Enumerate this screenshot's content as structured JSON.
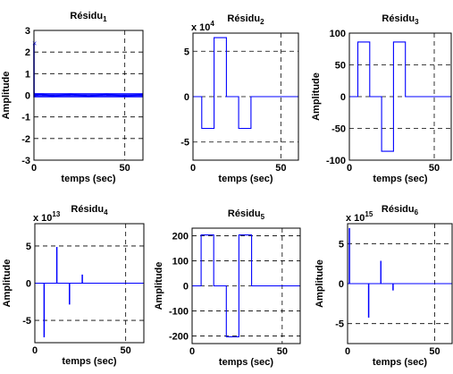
{
  "chart_data": [
    {
      "type": "line",
      "title": "Résidu",
      "title_sub": "1",
      "xlabel": "temps (sec)",
      "ylabel": "Amplitude",
      "xlim": [
        0,
        60
      ],
      "ylim": [
        -3,
        3
      ],
      "xticks": [
        "0",
        "50"
      ],
      "yticks": [
        "-3",
        "-2",
        "-1",
        "0",
        "1",
        "2",
        "3"
      ],
      "ytick_values": [
        -3,
        -2,
        -1,
        0,
        1,
        2,
        3
      ],
      "exponent": null,
      "grid": "dashed",
      "x": [
        0,
        0.05,
        0.1,
        0.2,
        0.4,
        0.6,
        1,
        5,
        10,
        20,
        30,
        40,
        50,
        60
      ],
      "y": [
        2.4,
        -0.1,
        0.12,
        -0.08,
        0.08,
        -0.06,
        0.05,
        0.05,
        -0.05,
        0.05,
        -0.05,
        0.05,
        -0.05,
        0.04
      ]
    },
    {
      "type": "line",
      "title": "Résidu",
      "title_sub": "2",
      "xlabel": "temps (sec)",
      "ylabel": "",
      "xlim": [
        0,
        60
      ],
      "ylim": [
        -7,
        7
      ],
      "xticks": [
        "0",
        "50"
      ],
      "yticks": [
        "-5",
        "0",
        "5"
      ],
      "ytick_values": [
        -5,
        0,
        5
      ],
      "exponent": {
        "base": "x 10",
        "power": "4"
      },
      "grid": "dashed",
      "x": [
        0,
        5,
        5,
        12,
        12,
        19,
        19,
        26,
        26,
        33,
        33,
        60
      ],
      "y": [
        0,
        0,
        -3.5,
        -3.5,
        6.5,
        6.5,
        0,
        0,
        -3.5,
        -3.5,
        0,
        0
      ]
    },
    {
      "type": "line",
      "title": "Résidu",
      "title_sub": "3",
      "xlabel": "temps (sec)",
      "ylabel": "Amplitude",
      "xlim": [
        0,
        60
      ],
      "ylim": [
        -100,
        100
      ],
      "xticks": [
        "0",
        "50"
      ],
      "yticks": [
        "-100",
        "-50",
        "0",
        "50",
        "100"
      ],
      "ytick_values": [
        -100,
        -50,
        0,
        50,
        100
      ],
      "exponent": null,
      "grid": "dashed",
      "x": [
        0,
        5,
        5,
        12,
        12,
        19,
        19,
        26,
        26,
        33,
        33,
        60
      ],
      "y": [
        0,
        0,
        86,
        86,
        0,
        0,
        -86,
        -86,
        86,
        86,
        0,
        0
      ]
    },
    {
      "type": "line",
      "title": "Résidu",
      "title_sub": "4",
      "xlabel": "temps (sec)",
      "ylabel": "Amplitude",
      "xlim": [
        0,
        60
      ],
      "ylim": [
        -8,
        8
      ],
      "xticks": [
        "0",
        "50"
      ],
      "yticks": [
        "-5",
        "0",
        "5"
      ],
      "ytick_values": [
        -5,
        0,
        5
      ],
      "exponent": {
        "base": "x 10",
        "power": "13"
      },
      "grid": "dashed",
      "x": [
        0,
        5,
        5,
        5.2,
        5.2,
        12,
        12,
        12.2,
        12.2,
        19,
        19,
        19.2,
        19.2,
        26,
        26,
        26.2,
        26.2,
        60
      ],
      "y": [
        0,
        0,
        -7.2,
        -7.2,
        0,
        0,
        4.8,
        4.8,
        0,
        0,
        -2.8,
        -2.8,
        0,
        0,
        1.1,
        1.1,
        0,
        0
      ]
    },
    {
      "type": "line",
      "title": "Résidu",
      "title_sub": "5",
      "xlabel": "temps (sec)",
      "ylabel": "Amplitude",
      "xlim": [
        0,
        60
      ],
      "ylim": [
        -230,
        230
      ],
      "xticks": [
        "0",
        "50"
      ],
      "yticks": [
        "-200",
        "-100",
        "0",
        "100",
        "200"
      ],
      "ytick_values": [
        -200,
        -100,
        0,
        100,
        200
      ],
      "exponent": null,
      "grid": "dashed",
      "x": [
        0,
        5,
        5,
        12,
        12,
        19,
        19,
        26,
        26,
        33,
        33,
        60
      ],
      "y": [
        0,
        0,
        203,
        203,
        0,
        0,
        -203,
        -203,
        203,
        203,
        0,
        0
      ]
    },
    {
      "type": "line",
      "title": "Résidu",
      "title_sub": "6",
      "xlabel": "temps (sec)",
      "ylabel": "Amplitude",
      "xlim": [
        0,
        60
      ],
      "ylim": [
        -7.5,
        7.5
      ],
      "xticks": [
        "0",
        "50"
      ],
      "yticks": [
        "-5",
        "0",
        "5"
      ],
      "ytick_values": [
        -5,
        0,
        5
      ],
      "exponent": {
        "base": "x 10",
        "power": "15"
      },
      "grid": "dashed",
      "x": [
        0,
        1,
        1,
        1.2,
        1.2,
        12,
        12,
        12.2,
        12.2,
        19,
        19,
        19.2,
        19.2,
        26,
        26,
        26.2,
        26.2,
        60
      ],
      "y": [
        0,
        0,
        6.9,
        6.9,
        0,
        0,
        -4.2,
        -4.2,
        0,
        0,
        2.8,
        2.8,
        0,
        0,
        -0.8,
        -0.8,
        0,
        0
      ]
    }
  ],
  "colors": {
    "line": "#0000ff",
    "axis": "#000000",
    "grid": "#000000",
    "background": "#ffffff"
  }
}
